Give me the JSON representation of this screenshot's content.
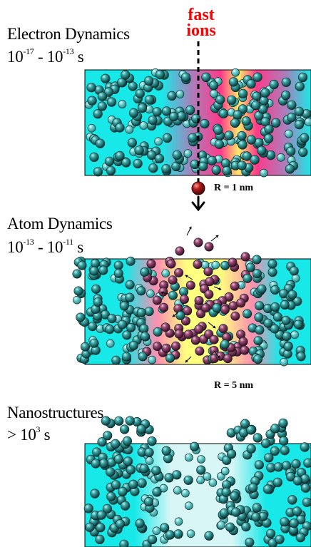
{
  "panels": [
    {
      "title": "Electron Dynamics",
      "time_base": "10",
      "time_exp_start": "-17",
      "time_sep": " - ",
      "time_base2": "10",
      "time_exp_end": "-13",
      "time_unit": " s"
    },
    {
      "title": "Atom Dynamics",
      "time_base": "10",
      "time_exp_start": "-13",
      "time_sep": " - ",
      "time_base2": "10",
      "time_exp_end": "-11",
      "time_unit": " s"
    },
    {
      "title": "Nanostructures",
      "time_prefix": "> 10",
      "time_exp": "3",
      "time_unit": " s"
    }
  ],
  "projectile": {
    "line1": "fast",
    "line2": "ions"
  },
  "radius_labels": [
    "R = 1 nm",
    "R = 5 nm"
  ],
  "colors": {
    "substrate": "#19e8e8",
    "atom_teal": "#1f8e8e",
    "atom_excited": "#8a2d5a",
    "ion": "#b11e1e",
    "hot_track": "#ff3a8a",
    "hot_core": "#ffff80",
    "label_red": "#ff0000"
  }
}
